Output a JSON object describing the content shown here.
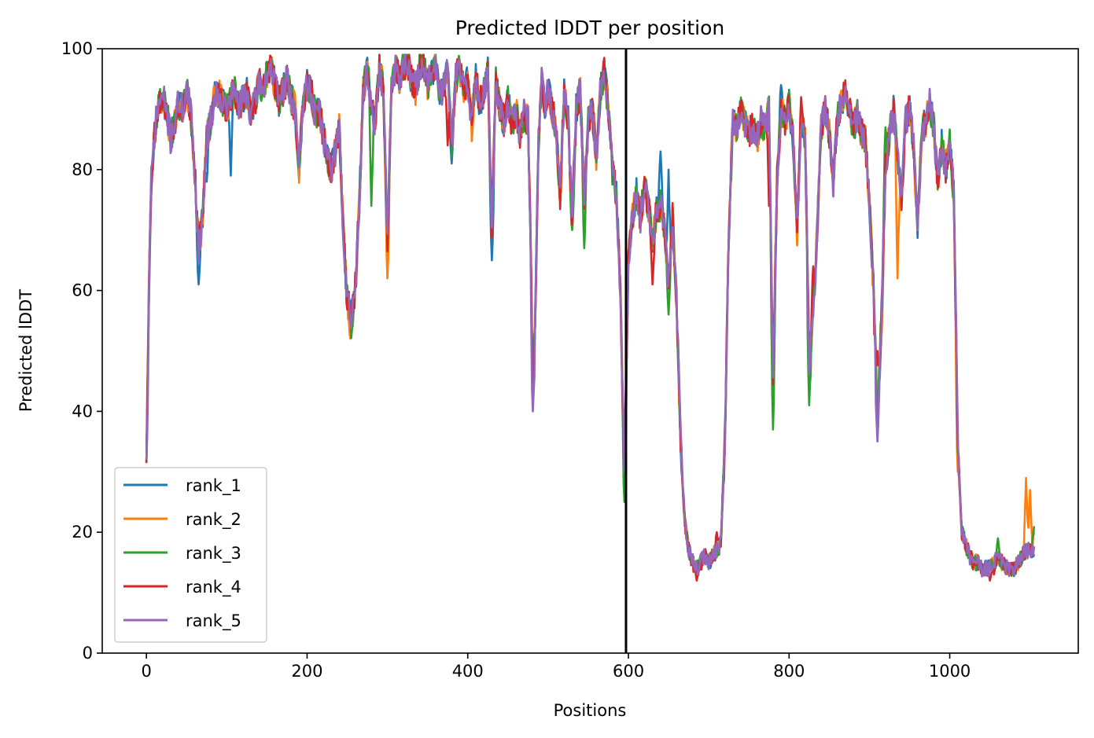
{
  "chart_data": {
    "type": "line",
    "title": "Predicted lDDT per position",
    "xlabel": "Positions",
    "ylabel": "Predicted lDDT",
    "xlim": [
      -55,
      1160
    ],
    "ylim": [
      0,
      100
    ],
    "xticks": [
      0,
      200,
      400,
      600,
      800,
      1000
    ],
    "yticks": [
      0,
      20,
      40,
      60,
      80,
      100
    ],
    "grid": false,
    "legend_position": "lower-left",
    "vertical_line": {
      "x": 597,
      "color": "#000000"
    },
    "base_profile": [
      [
        0,
        33
      ],
      [
        3,
        60
      ],
      [
        6,
        78
      ],
      [
        10,
        86
      ],
      [
        15,
        91
      ],
      [
        20,
        92
      ],
      [
        25,
        90
      ],
      [
        30,
        85
      ],
      [
        35,
        88
      ],
      [
        40,
        91
      ],
      [
        45,
        90
      ],
      [
        50,
        93
      ],
      [
        55,
        90
      ],
      [
        60,
        80
      ],
      [
        65,
        67
      ],
      [
        70,
        72
      ],
      [
        75,
        85
      ],
      [
        80,
        88
      ],
      [
        85,
        92
      ],
      [
        90,
        93
      ],
      [
        95,
        91
      ],
      [
        100,
        90
      ],
      [
        105,
        92
      ],
      [
        110,
        93
      ],
      [
        115,
        90
      ],
      [
        120,
        92
      ],
      [
        125,
        93
      ],
      [
        130,
        89
      ],
      [
        135,
        91
      ],
      [
        140,
        95
      ],
      [
        145,
        93
      ],
      [
        150,
        96
      ],
      [
        155,
        97
      ],
      [
        160,
        94
      ],
      [
        165,
        91
      ],
      [
        170,
        93
      ],
      [
        175,
        95
      ],
      [
        180,
        92
      ],
      [
        185,
        90
      ],
      [
        190,
        80
      ],
      [
        195,
        91
      ],
      [
        200,
        94
      ],
      [
        205,
        93
      ],
      [
        210,
        89
      ],
      [
        215,
        90
      ],
      [
        220,
        86
      ],
      [
        225,
        82
      ],
      [
        230,
        80
      ],
      [
        235,
        83
      ],
      [
        240,
        87
      ],
      [
        245,
        70
      ],
      [
        250,
        58
      ],
      [
        255,
        55
      ],
      [
        260,
        60
      ],
      [
        265,
        75
      ],
      [
        270,
        93
      ],
      [
        275,
        97
      ],
      [
        280,
        90
      ],
      [
        285,
        88
      ],
      [
        290,
        97
      ],
      [
        295,
        93
      ],
      [
        300,
        68
      ],
      [
        305,
        93
      ],
      [
        310,
        97
      ],
      [
        315,
        95
      ],
      [
        320,
        97
      ],
      [
        325,
        98
      ],
      [
        330,
        95
      ],
      [
        335,
        93
      ],
      [
        340,
        97
      ],
      [
        345,
        98
      ],
      [
        350,
        94
      ],
      [
        355,
        96
      ],
      [
        360,
        97
      ],
      [
        365,
        92
      ],
      [
        370,
        94
      ],
      [
        375,
        96
      ],
      [
        380,
        84
      ],
      [
        385,
        95
      ],
      [
        390,
        97
      ],
      [
        395,
        93
      ],
      [
        400,
        95
      ],
      [
        405,
        87
      ],
      [
        410,
        95
      ],
      [
        415,
        91
      ],
      [
        420,
        93
      ],
      [
        425,
        96
      ],
      [
        430,
        70
      ],
      [
        435,
        95
      ],
      [
        440,
        90
      ],
      [
        445,
        88
      ],
      [
        450,
        92
      ],
      [
        455,
        87
      ],
      [
        460,
        90
      ],
      [
        465,
        86
      ],
      [
        470,
        89
      ],
      [
        475,
        88
      ],
      [
        478,
        70
      ],
      [
        481,
        42
      ],
      [
        484,
        55
      ],
      [
        488,
        85
      ],
      [
        492,
        95
      ],
      [
        496,
        90
      ],
      [
        500,
        93
      ],
      [
        505,
        90
      ],
      [
        510,
        87
      ],
      [
        515,
        75
      ],
      [
        520,
        93
      ],
      [
        525,
        88
      ],
      [
        530,
        72
      ],
      [
        535,
        90
      ],
      [
        540,
        93
      ],
      [
        545,
        75
      ],
      [
        550,
        88
      ],
      [
        555,
        90
      ],
      [
        560,
        82
      ],
      [
        565,
        93
      ],
      [
        570,
        96
      ],
      [
        575,
        90
      ],
      [
        580,
        80
      ],
      [
        585,
        76
      ],
      [
        590,
        60
      ],
      [
        595,
        30
      ],
      [
        600,
        65
      ],
      [
        605,
        72
      ],
      [
        610,
        76
      ],
      [
        615,
        72
      ],
      [
        620,
        77
      ],
      [
        625,
        74
      ],
      [
        630,
        68
      ],
      [
        635,
        73
      ],
      [
        640,
        74
      ],
      [
        645,
        70
      ],
      [
        650,
        60
      ],
      [
        655,
        72
      ],
      [
        660,
        58
      ],
      [
        665,
        35
      ],
      [
        670,
        22
      ],
      [
        675,
        17
      ],
      [
        680,
        15
      ],
      [
        685,
        14
      ],
      [
        690,
        15
      ],
      [
        695,
        16
      ],
      [
        700,
        15
      ],
      [
        705,
        16
      ],
      [
        710,
        17
      ],
      [
        715,
        18
      ],
      [
        720,
        35
      ],
      [
        725,
        70
      ],
      [
        730,
        88
      ],
      [
        735,
        87
      ],
      [
        740,
        90
      ],
      [
        745,
        88
      ],
      [
        750,
        86
      ],
      [
        755,
        87
      ],
      [
        760,
        85
      ],
      [
        765,
        88
      ],
      [
        770,
        87
      ],
      [
        775,
        90
      ],
      [
        780,
        45
      ],
      [
        785,
        78
      ],
      [
        790,
        90
      ],
      [
        795,
        88
      ],
      [
        800,
        91
      ],
      [
        805,
        85
      ],
      [
        810,
        70
      ],
      [
        815,
        88
      ],
      [
        820,
        85
      ],
      [
        825,
        48
      ],
      [
        830,
        55
      ],
      [
        835,
        70
      ],
      [
        840,
        87
      ],
      [
        845,
        90
      ],
      [
        850,
        86
      ],
      [
        855,
        78
      ],
      [
        860,
        88
      ],
      [
        865,
        91
      ],
      [
        870,
        93
      ],
      [
        875,
        90
      ],
      [
        880,
        87
      ],
      [
        885,
        89
      ],
      [
        890,
        86
      ],
      [
        895,
        85
      ],
      [
        900,
        75
      ],
      [
        905,
        60
      ],
      [
        910,
        38
      ],
      [
        915,
        55
      ],
      [
        920,
        80
      ],
      [
        925,
        86
      ],
      [
        930,
        90
      ],
      [
        935,
        82
      ],
      [
        940,
        75
      ],
      [
        945,
        88
      ],
      [
        950,
        90
      ],
      [
        955,
        84
      ],
      [
        960,
        70
      ],
      [
        965,
        86
      ],
      [
        970,
        88
      ],
      [
        975,
        91
      ],
      [
        980,
        87
      ],
      [
        985,
        78
      ],
      [
        990,
        84
      ],
      [
        995,
        80
      ],
      [
        1000,
        85
      ],
      [
        1005,
        76
      ],
      [
        1010,
        35
      ],
      [
        1015,
        20
      ],
      [
        1020,
        18
      ],
      [
        1025,
        16
      ],
      [
        1030,
        15
      ],
      [
        1035,
        15
      ],
      [
        1040,
        14
      ],
      [
        1045,
        14
      ],
      [
        1050,
        14
      ],
      [
        1055,
        15
      ],
      [
        1060,
        16
      ],
      [
        1065,
        15
      ],
      [
        1070,
        14
      ],
      [
        1075,
        14
      ],
      [
        1080,
        14
      ],
      [
        1085,
        15
      ],
      [
        1090,
        16
      ],
      [
        1095,
        17
      ],
      [
        1100,
        17
      ],
      [
        1105,
        17
      ]
    ],
    "series": [
      {
        "name": "rank_1",
        "color": "#1f77b4",
        "noise_seed": 11,
        "overrides": [
          [
            65,
            61
          ],
          [
            75,
            78
          ],
          [
            105,
            79
          ],
          [
            380,
            81
          ],
          [
            430,
            65
          ],
          [
            640,
            83
          ],
          [
            650,
            80
          ],
          [
            780,
            43
          ],
          [
            790,
            94
          ],
          [
            870,
            94
          ]
        ]
      },
      {
        "name": "rank_2",
        "color": "#ff7f0e",
        "noise_seed": 23,
        "overrides": [
          [
            254,
            52
          ],
          [
            300,
            62
          ],
          [
            685,
            15
          ],
          [
            915,
            52
          ],
          [
            935,
            62
          ],
          [
            1010,
            30
          ],
          [
            1095,
            29
          ],
          [
            1100,
            27
          ],
          [
            1105,
            20
          ]
        ]
      },
      {
        "name": "rank_3",
        "color": "#2ca02c",
        "noise_seed": 37,
        "overrides": [
          [
            155,
            98
          ],
          [
            280,
            74
          ],
          [
            530,
            70
          ],
          [
            545,
            67
          ],
          [
            595,
            25
          ],
          [
            650,
            56
          ],
          [
            780,
            37
          ],
          [
            825,
            41
          ],
          [
            920,
            87
          ],
          [
            1060,
            19
          ],
          [
            1105,
            21
          ]
        ]
      },
      {
        "name": "rank_4",
        "color": "#d62728",
        "noise_seed": 53,
        "overrides": [
          [
            375,
            84
          ],
          [
            420,
            91
          ],
          [
            630,
            61
          ],
          [
            685,
            12
          ],
          [
            710,
            20
          ],
          [
            775,
            74
          ],
          [
            815,
            92
          ],
          [
            830,
            64
          ],
          [
            910,
            50
          ],
          [
            1050,
            12
          ],
          [
            1055,
            13
          ]
        ]
      },
      {
        "name": "rank_5",
        "color": "#9467bd",
        "noise_seed": 71,
        "overrides": [
          [
            0,
            32
          ],
          [
            481,
            40
          ],
          [
            910,
            35
          ],
          [
            1080,
            13
          ]
        ]
      }
    ]
  }
}
